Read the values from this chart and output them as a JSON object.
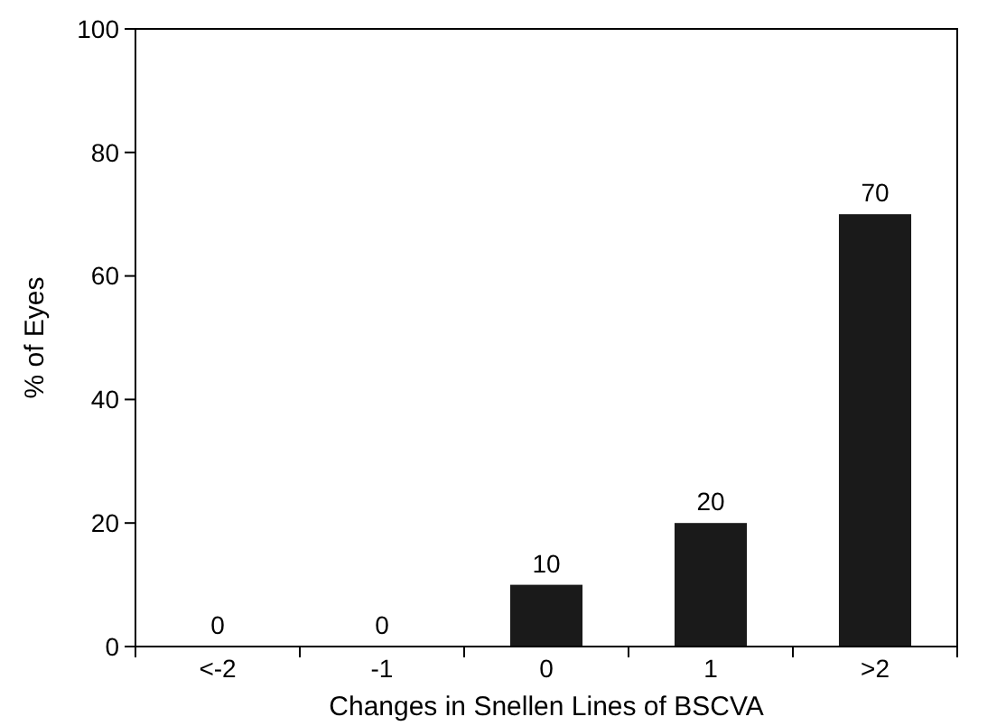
{
  "chart_data": {
    "type": "bar",
    "xlabel": "Changes in Snellen Lines of BSCVA",
    "ylabel": "% of Eyes",
    "categories": [
      "<-2",
      "-1",
      "0",
      "1",
      ">2"
    ],
    "values": [
      0,
      0,
      10,
      20,
      70
    ],
    "color": "#1a1a1a",
    "ylim": [
      0,
      100
    ],
    "yticks": [
      0,
      20,
      40,
      60,
      80,
      100
    ],
    "grid": false,
    "data_labels": true
  }
}
